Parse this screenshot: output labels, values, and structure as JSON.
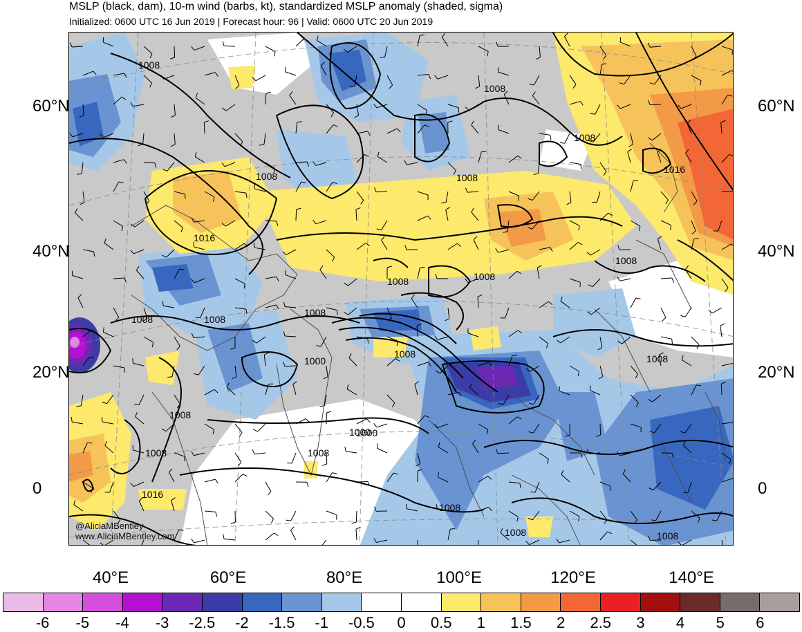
{
  "header": {
    "title": "MSLP (black, dam), 10-m wind (barbs, kt), standardized MSLP anomaly (shaded, sigma)",
    "subtitle": "Initialized: 0600 UTC 16 Jun 2019 | Forecast hour: 96 | Valid: 0600 UTC 20 Jun 2019"
  },
  "map": {
    "lat_labels": [
      "60°N",
      "40°N",
      "20°N",
      "0"
    ],
    "lon_labels": [
      "40°E",
      "60°E",
      "80°E",
      "100°E",
      "120°E",
      "140°E"
    ],
    "contour_labels": [
      "1008",
      "1008",
      "1008",
      "1008",
      "1008",
      "1016",
      "1008",
      "1008",
      "1008",
      "1008",
      "1008",
      "1008",
      "1008",
      "1000",
      "1008",
      "1000",
      "1000",
      "1008",
      "1008",
      "1016",
      "1008",
      "1008",
      "1008",
      "1016",
      "1008"
    ],
    "credit_line1": "@AliciaMBentley",
    "credit_line2": "www.AliciaMBentley.com",
    "colors": {
      "neg6": "#ecbce9",
      "neg5": "#e486e4",
      "neg4": "#d54ddc",
      "neg3": "#b50fd0",
      "neg25": "#6c27b4",
      "neg2": "#3c3ca8",
      "neg15": "#3867bf",
      "neg1": "#6a94d1",
      "neg05": "#a6c8e8",
      "zero": "#ffffff",
      "pos05": "#fde96c",
      "pos1": "#f6c35b",
      "pos15": "#f39a47",
      "pos2": "#f26735",
      "pos25": "#ec2024",
      "pos3": "#e51a1a",
      "pos4": "#a01818",
      "pos5": "#6b2a2a",
      "pos6": "#7a6c6b",
      "pos7": "#a89e9e",
      "gray": "#c9c9c9",
      "land_border": "#4d4d4d"
    }
  },
  "colorbar": {
    "colors": [
      "#ecbce9",
      "#e486e4",
      "#d54ddc",
      "#b50fd0",
      "#6c27b4",
      "#3c3ca8",
      "#3867bf",
      "#6a94d1",
      "#a6c8e8",
      "#ffffff",
      "#ffffff",
      "#fde96c",
      "#f6c35b",
      "#f39a47",
      "#f26735",
      "#ec2024",
      "#a30f0f",
      "#6d2a2a",
      "#776c6a",
      "#a89e9e"
    ],
    "labels": [
      "-6",
      "-5",
      "-4",
      "-3",
      "-2.5",
      "-2",
      "-1.5",
      "-1",
      "-0.5",
      "0",
      "0.5",
      "1",
      "1.5",
      "2",
      "2.5",
      "3",
      "4",
      "5",
      "6"
    ]
  }
}
